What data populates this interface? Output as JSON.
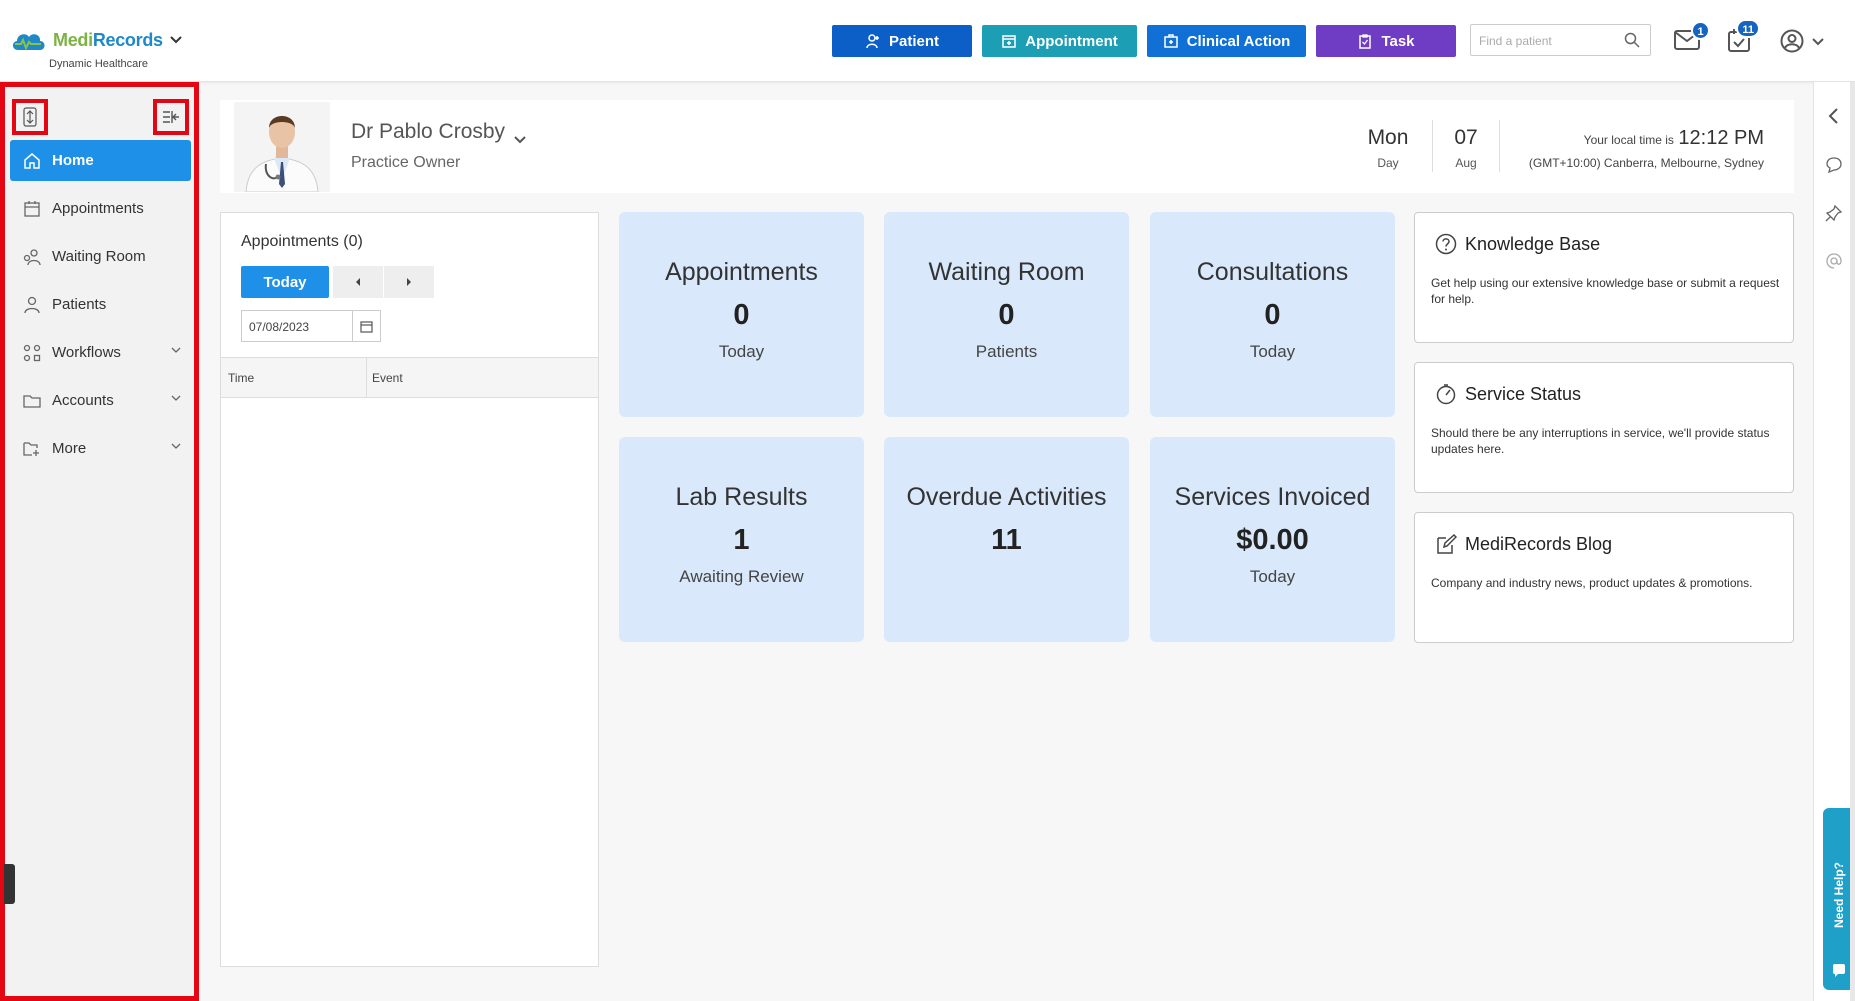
{
  "header": {
    "brand_part1": "Medi",
    "brand_part2": "Records",
    "brand_subtitle": "Dynamic Healthcare",
    "buttons": {
      "patient": "Patient",
      "appointment": "Appointment",
      "clinical_action": "Clinical Action",
      "task": "Task"
    },
    "search_placeholder": "Find a patient",
    "mail_badge": "1",
    "tasks_badge": "11"
  },
  "sidebar": {
    "items": [
      {
        "label": "Home",
        "icon": "home-icon"
      },
      {
        "label": "Appointments",
        "icon": "calendar-icon"
      },
      {
        "label": "Waiting Room",
        "icon": "waiting-room-icon"
      },
      {
        "label": "Patients",
        "icon": "patients-icon"
      },
      {
        "label": "Workflows",
        "icon": "workflows-icon"
      },
      {
        "label": "Accounts",
        "icon": "folder-icon"
      },
      {
        "label": "More",
        "icon": "more-folder-icon"
      }
    ]
  },
  "profile": {
    "name": "Dr Pablo Crosby",
    "role": "Practice Owner",
    "day": "Mon",
    "day_label": "Day",
    "date": "07",
    "month": "Aug",
    "local_time_label": "Your local time is",
    "time": "12:12 PM",
    "timezone": "(GMT+10:00) Canberra, Melbourne, Sydney"
  },
  "appointments_panel": {
    "title": "Appointments (0)",
    "today_button": "Today",
    "date": "07/08/2023",
    "col_time": "Time",
    "col_event": "Event"
  },
  "tiles": [
    {
      "title": "Appointments",
      "value": "0",
      "sub": "Today"
    },
    {
      "title": "Waiting Room",
      "value": "0",
      "sub": "Patients"
    },
    {
      "title": "Consultations",
      "value": "0",
      "sub": "Today"
    },
    {
      "title": "Lab Results",
      "value": "1",
      "sub": "Awaiting Review"
    },
    {
      "title": "Overdue Activities",
      "value": "11",
      "sub": ""
    },
    {
      "title": "Services Invoiced",
      "value": "$0.00",
      "sub": "Today"
    }
  ],
  "cards": [
    {
      "title": "Knowledge Base",
      "body": "Get help using our extensive knowledge base or submit a request for help."
    },
    {
      "title": "Service Status",
      "body": "Should there be any interruptions in service, we'll provide status updates here."
    },
    {
      "title": "MediRecords Blog",
      "body": "Company and industry news, product updates & promotions."
    }
  ],
  "need_help": "Need Help?",
  "colors": {
    "patient_btn": "#0b5fc7",
    "appointment_btn": "#1c9fb5",
    "clinical_btn": "#1170d6",
    "task_btn": "#6f3cc4",
    "highlight": "#e30613",
    "nav_active": "#1e90e8",
    "tile_bg": "#d9e9fb"
  }
}
